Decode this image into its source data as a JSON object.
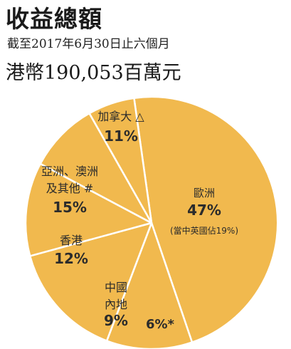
{
  "header": {
    "title": "收益總額",
    "subtitle": "截至2017年6月30日止六個月",
    "total": "港幣190,053百萬元"
  },
  "colors": {
    "slice": "#f1b94e",
    "separator": "#ffffff"
  },
  "chart_data": {
    "type": "pie",
    "title": "收益總額",
    "subtitle": "截至2017年6月30日止六個月",
    "slices": [
      {
        "name": "歐洲",
        "value": 47,
        "label_lines": [
          "歐洲"
        ],
        "pct": "47%",
        "note": "(當中英國佔19%)"
      },
      {
        "name": "加拿大",
        "value": 11,
        "label_lines": [
          "加拿大 △"
        ],
        "pct": "11%",
        "note": ""
      },
      {
        "name": "亞洲、澳洲及其他",
        "value": 15,
        "label_lines": [
          "亞洲、澳洲",
          "及其他 #"
        ],
        "pct": "15%",
        "note": ""
      },
      {
        "name": "香港",
        "value": 12,
        "label_lines": [
          "香港"
        ],
        "pct": "12%",
        "note": ""
      },
      {
        "name": "中國內地",
        "value": 9,
        "label_lines": [
          "中國",
          "內地"
        ],
        "pct": "9%",
        "note": ""
      },
      {
        "name": "6%*",
        "value": 6,
        "label_lines": [],
        "pct": "6%*",
        "note": ""
      }
    ]
  }
}
